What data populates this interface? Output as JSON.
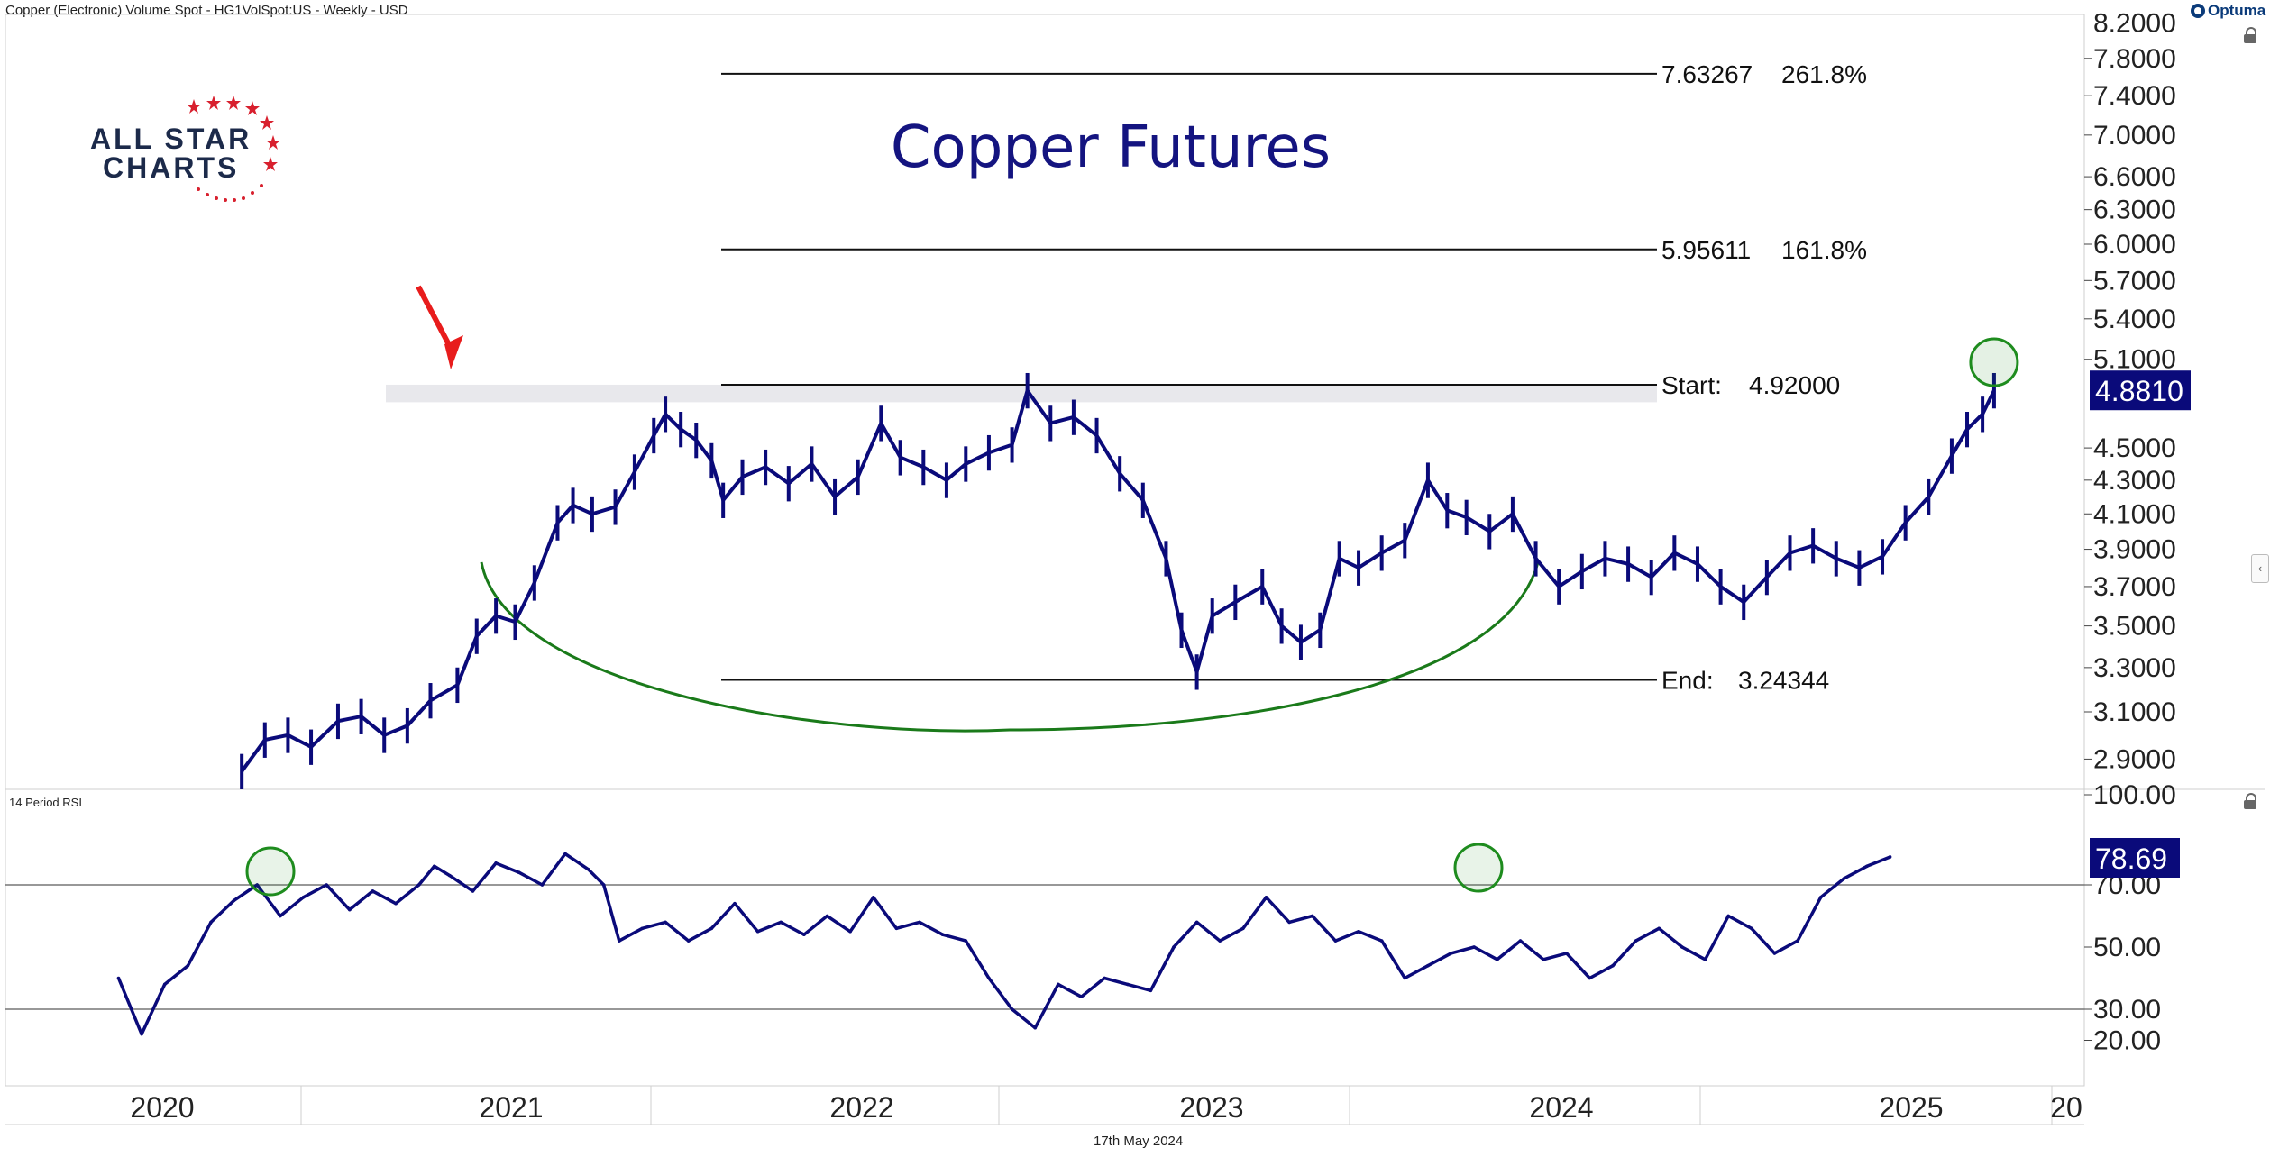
{
  "header": {
    "title": "Copper (Electronic) Volume Spot - HG1VolSpot:US - Weekly - USD",
    "brand": "Optuma"
  },
  "logo": {
    "line1": "ALL STAR",
    "line2": "CHARTS"
  },
  "footer": {
    "date": "17th May 2024"
  },
  "colors": {
    "price": "#0a0a7a",
    "rsi": "#0a0a7a",
    "arc": "#1a7a1a",
    "arrow": "#e81c1c",
    "label_bg": "#0a0a7a",
    "zone": "#e8e8ec",
    "circle": "#1e8c1e"
  },
  "chart_data": [
    {
      "type": "line",
      "title": "Copper Futures",
      "ylim": [
        2.8,
        8.2
      ],
      "yscale": "log",
      "y_ticks": [
        "8.2000",
        "7.8000",
        "7.4000",
        "7.0000",
        "6.6000",
        "6.3000",
        "6.0000",
        "5.7000",
        "5.4000",
        "5.1000",
        "4.5000",
        "4.3000",
        "4.1000",
        "3.9000",
        "3.7000",
        "3.5000",
        "3.3000",
        "3.1000",
        "2.9000"
      ],
      "x_ticks": [
        "2020",
        "2021",
        "2022",
        "2023",
        "2024",
        "2025",
        "20"
      ],
      "last_value": "4.8810",
      "fib_levels": [
        {
          "value": "7.63267",
          "pct": "261.8%",
          "y": 7.63267
        },
        {
          "value": "5.95611",
          "pct": "161.8%",
          "y": 5.95611
        },
        {
          "label": "Start:",
          "value": "4.92000",
          "y": 4.92
        },
        {
          "label": "End:",
          "value": "3.24344",
          "y": 3.24344
        }
      ],
      "resistance_zone": [
        4.8,
        4.92
      ],
      "series": [
        {
          "values": [
            [
              2020.3,
              2.85
            ],
            [
              2020.36,
              2.98
            ],
            [
              2020.42,
              3.0
            ],
            [
              2020.48,
              2.95
            ],
            [
              2020.55,
              3.06
            ],
            [
              2020.61,
              3.08
            ],
            [
              2020.67,
              3.0
            ],
            [
              2020.73,
              3.04
            ],
            [
              2020.79,
              3.15
            ],
            [
              2020.86,
              3.22
            ],
            [
              2020.91,
              3.45
            ],
            [
              2020.96,
              3.55
            ],
            [
              2021.01,
              3.52
            ],
            [
              2021.06,
              3.72
            ],
            [
              2021.12,
              4.05
            ],
            [
              2021.16,
              4.15
            ],
            [
              2021.21,
              4.1
            ],
            [
              2021.27,
              4.14
            ],
            [
              2021.32,
              4.35
            ],
            [
              2021.37,
              4.58
            ],
            [
              2021.4,
              4.72
            ],
            [
              2021.44,
              4.62
            ],
            [
              2021.48,
              4.55
            ],
            [
              2021.52,
              4.42
            ],
            [
              2021.55,
              4.18
            ],
            [
              2021.6,
              4.32
            ],
            [
              2021.66,
              4.38
            ],
            [
              2021.72,
              4.28
            ],
            [
              2021.78,
              4.4
            ],
            [
              2021.84,
              4.2
            ],
            [
              2021.9,
              4.32
            ],
            [
              2021.96,
              4.66
            ],
            [
              2022.01,
              4.44
            ],
            [
              2022.07,
              4.38
            ],
            [
              2022.13,
              4.3
            ],
            [
              2022.18,
              4.4
            ],
            [
              2022.24,
              4.47
            ],
            [
              2022.3,
              4.52
            ],
            [
              2022.34,
              4.88
            ],
            [
              2022.4,
              4.66
            ],
            [
              2022.46,
              4.7
            ],
            [
              2022.52,
              4.58
            ],
            [
              2022.58,
              4.34
            ],
            [
              2022.64,
              4.18
            ],
            [
              2022.7,
              3.85
            ],
            [
              2022.74,
              3.48
            ],
            [
              2022.78,
              3.28
            ],
            [
              2022.82,
              3.55
            ],
            [
              2022.88,
              3.62
            ],
            [
              2022.95,
              3.7
            ],
            [
              2023.0,
              3.5
            ],
            [
              2023.05,
              3.42
            ],
            [
              2023.1,
              3.48
            ],
            [
              2023.15,
              3.85
            ],
            [
              2023.2,
              3.8
            ],
            [
              2023.26,
              3.88
            ],
            [
              2023.32,
              3.95
            ],
            [
              2023.38,
              4.3
            ],
            [
              2023.43,
              4.12
            ],
            [
              2023.48,
              4.08
            ],
            [
              2023.54,
              4.0
            ],
            [
              2023.6,
              4.1
            ],
            [
              2023.66,
              3.85
            ],
            [
              2023.72,
              3.7
            ],
            [
              2023.78,
              3.78
            ],
            [
              2023.84,
              3.85
            ],
            [
              2023.9,
              3.82
            ],
            [
              2023.96,
              3.75
            ],
            [
              2024.02,
              3.88
            ],
            [
              2024.08,
              3.82
            ],
            [
              2024.14,
              3.7
            ],
            [
              2024.2,
              3.62
            ],
            [
              2024.26,
              3.75
            ],
            [
              2024.32,
              3.88
            ],
            [
              2024.38,
              3.92
            ],
            [
              2024.44,
              3.85
            ],
            [
              2024.5,
              3.8
            ],
            [
              2024.56,
              3.86
            ],
            [
              2024.62,
              4.05
            ],
            [
              2024.68,
              4.2
            ],
            [
              2024.74,
              4.45
            ],
            [
              2024.78,
              4.62
            ],
            [
              2024.82,
              4.72
            ],
            [
              2024.85,
              4.88
            ]
          ]
        }
      ]
    },
    {
      "type": "line",
      "title": "14 Period RSI",
      "ylim": [
        0,
        100
      ],
      "y_ticks": [
        "100.00",
        "70.00",
        "50.00",
        "30.00",
        "20.00"
      ],
      "reference_lines": [
        70,
        30
      ],
      "last_value": "78.69",
      "series": [
        {
          "values": [
            [
              2019.98,
              40
            ],
            [
              2020.04,
              22
            ],
            [
              2020.1,
              38
            ],
            [
              2020.16,
              44
            ],
            [
              2020.22,
              58
            ],
            [
              2020.28,
              65
            ],
            [
              2020.34,
              70
            ],
            [
              2020.4,
              60
            ],
            [
              2020.46,
              66
            ],
            [
              2020.52,
              70
            ],
            [
              2020.58,
              62
            ],
            [
              2020.64,
              68
            ],
            [
              2020.7,
              64
            ],
            [
              2020.76,
              70
            ],
            [
              2020.8,
              76
            ],
            [
              2020.84,
              73
            ],
            [
              2020.9,
              68
            ],
            [
              2020.96,
              77
            ],
            [
              2021.02,
              74
            ],
            [
              2021.08,
              70
            ],
            [
              2021.14,
              80
            ],
            [
              2021.2,
              75
            ],
            [
              2021.24,
              70
            ],
            [
              2021.28,
              52
            ],
            [
              2021.34,
              56
            ],
            [
              2021.4,
              58
            ],
            [
              2021.46,
              52
            ],
            [
              2021.52,
              56
            ],
            [
              2021.58,
              64
            ],
            [
              2021.64,
              55
            ],
            [
              2021.7,
              58
            ],
            [
              2021.76,
              54
            ],
            [
              2021.82,
              60
            ],
            [
              2021.88,
              55
            ],
            [
              2021.94,
              66
            ],
            [
              2022.0,
              56
            ],
            [
              2022.06,
              58
            ],
            [
              2022.12,
              54
            ],
            [
              2022.18,
              52
            ],
            [
              2022.24,
              40
            ],
            [
              2022.3,
              30
            ],
            [
              2022.36,
              24
            ],
            [
              2022.42,
              38
            ],
            [
              2022.48,
              34
            ],
            [
              2022.54,
              40
            ],
            [
              2022.6,
              38
            ],
            [
              2022.66,
              36
            ],
            [
              2022.72,
              50
            ],
            [
              2022.78,
              58
            ],
            [
              2022.84,
              52
            ],
            [
              2022.9,
              56
            ],
            [
              2022.96,
              66
            ],
            [
              2023.02,
              58
            ],
            [
              2023.08,
              60
            ],
            [
              2023.14,
              52
            ],
            [
              2023.2,
              55
            ],
            [
              2023.26,
              52
            ],
            [
              2023.32,
              40
            ],
            [
              2023.38,
              44
            ],
            [
              2023.44,
              48
            ],
            [
              2023.5,
              50
            ],
            [
              2023.56,
              46
            ],
            [
              2023.62,
              52
            ],
            [
              2023.68,
              46
            ],
            [
              2023.74,
              48
            ],
            [
              2023.8,
              40
            ],
            [
              2023.86,
              44
            ],
            [
              2023.92,
              52
            ],
            [
              2023.98,
              56
            ],
            [
              2024.04,
              50
            ],
            [
              2024.1,
              46
            ],
            [
              2024.16,
              60
            ],
            [
              2024.22,
              56
            ],
            [
              2024.28,
              48
            ],
            [
              2024.34,
              52
            ],
            [
              2024.4,
              66
            ],
            [
              2024.46,
              72
            ],
            [
              2024.52,
              76
            ],
            [
              2024.58,
              79
            ]
          ]
        }
      ]
    }
  ]
}
